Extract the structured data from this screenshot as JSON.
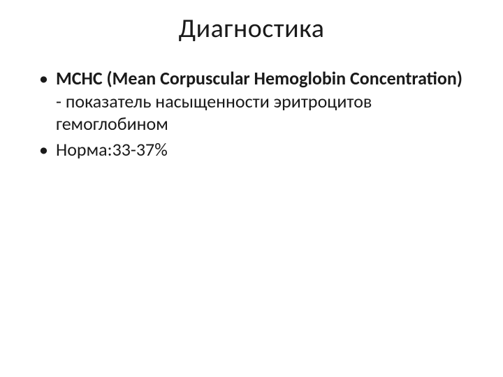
{
  "slide": {
    "title": "Диагностика",
    "title_fontsize": 38,
    "title_color": "#1a1a1a",
    "background_color": "#ffffff",
    "bullets": [
      {
        "bold_part": "МСНС (Мean Corpuscular Hemoglobin Concentration)",
        "normal_part": " - показатель насыщенности эритроцитов гемоглобином"
      },
      {
        "bold_part": "",
        "normal_part": "Норма:33-37%"
      }
    ],
    "body_fontsize": 26,
    "body_color": "#1a1a1a",
    "font_family": "Calibri"
  }
}
